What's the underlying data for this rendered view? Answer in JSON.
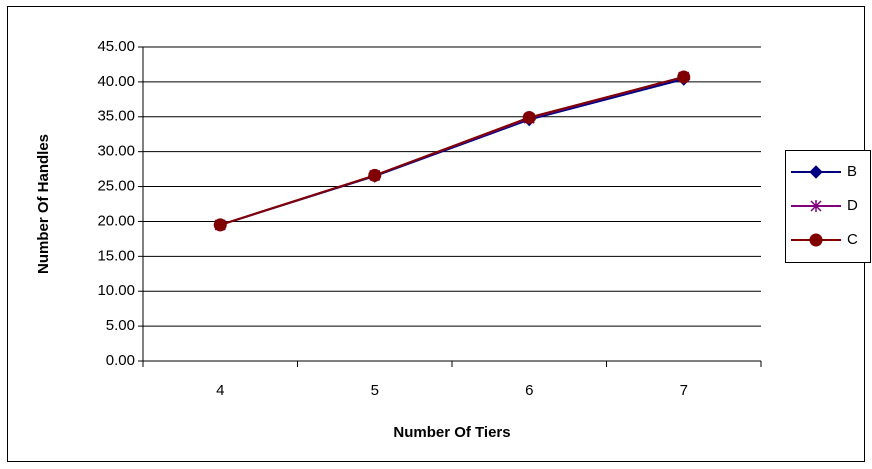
{
  "chart_data": {
    "type": "line",
    "xlabel": "Number Of Tiers",
    "ylabel": "Number Of Handles",
    "categories": [
      "4",
      "5",
      "6",
      "7"
    ],
    "series": [
      {
        "name": "B",
        "color": "#000080",
        "marker": "diamond",
        "values": [
          19.5,
          26.5,
          34.6,
          40.4
        ]
      },
      {
        "name": "D",
        "color": "#800080",
        "marker": "star",
        "values": [
          19.5,
          26.6,
          34.8,
          40.7
        ]
      },
      {
        "name": "C",
        "color": "#800000",
        "marker": "circle",
        "values": [
          19.5,
          26.6,
          34.9,
          40.7
        ]
      }
    ],
    "ylim": [
      0,
      45
    ],
    "yticks": [
      {
        "value": 0,
        "label": "0.00"
      },
      {
        "value": 5,
        "label": "5.00"
      },
      {
        "value": 10,
        "label": "10.00"
      },
      {
        "value": 15,
        "label": "15.00"
      },
      {
        "value": 20,
        "label": "20.00"
      },
      {
        "value": 25,
        "label": "25.00"
      },
      {
        "value": 30,
        "label": "30.00"
      },
      {
        "value": 35,
        "label": "35.00"
      },
      {
        "value": 40,
        "label": "40.00"
      },
      {
        "value": 45,
        "label": "45.00"
      }
    ],
    "grid": true,
    "legend": "right"
  }
}
